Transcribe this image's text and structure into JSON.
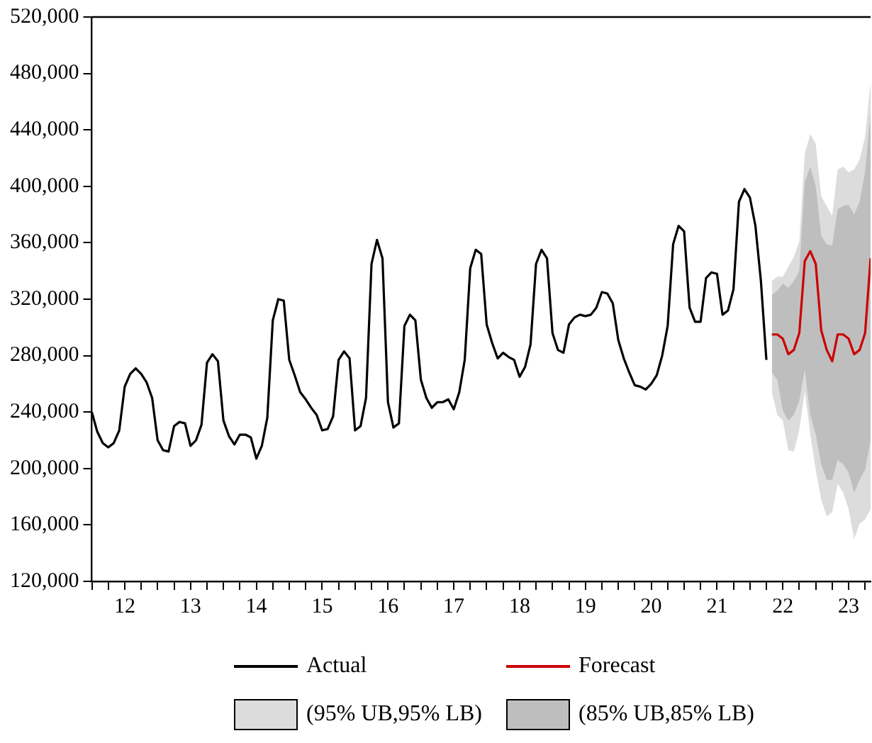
{
  "chart_data": {
    "type": "line",
    "xlim": [
      "2012-01",
      "2023-11"
    ],
    "xticks": [
      {
        "value": "2012-01",
        "label": null
      },
      {
        "value": "2012-04",
        "label": null
      },
      {
        "value": "2012-07",
        "label": "12"
      },
      {
        "value": "2012-10",
        "label": null
      },
      {
        "value": "2013-01",
        "label": null
      },
      {
        "value": "2013-04",
        "label": null
      },
      {
        "value": "2013-07",
        "label": "13"
      },
      {
        "value": "2013-10",
        "label": null
      },
      {
        "value": "2014-01",
        "label": null
      },
      {
        "value": "2014-04",
        "label": null
      },
      {
        "value": "2014-07",
        "label": "14"
      },
      {
        "value": "2014-10",
        "label": null
      },
      {
        "value": "2015-01",
        "label": null
      },
      {
        "value": "2015-04",
        "label": null
      },
      {
        "value": "2015-07",
        "label": "15"
      },
      {
        "value": "2015-10",
        "label": null
      },
      {
        "value": "2016-01",
        "label": null
      },
      {
        "value": "2016-04",
        "label": null
      },
      {
        "value": "2016-07",
        "label": "16"
      },
      {
        "value": "2016-10",
        "label": null
      },
      {
        "value": "2017-01",
        "label": null
      },
      {
        "value": "2017-04",
        "label": null
      },
      {
        "value": "2017-07",
        "label": "17"
      },
      {
        "value": "2017-10",
        "label": null
      },
      {
        "value": "2018-01",
        "label": null
      },
      {
        "value": "2018-04",
        "label": null
      },
      {
        "value": "2018-07",
        "label": "18"
      },
      {
        "value": "2018-10",
        "label": null
      },
      {
        "value": "2019-01",
        "label": null
      },
      {
        "value": "2019-04",
        "label": null
      },
      {
        "value": "2019-07",
        "label": "19"
      },
      {
        "value": "2019-10",
        "label": null
      },
      {
        "value": "2020-01",
        "label": null
      },
      {
        "value": "2020-04",
        "label": null
      },
      {
        "value": "2020-07",
        "label": "20"
      },
      {
        "value": "2020-10",
        "label": null
      },
      {
        "value": "2021-01",
        "label": null
      },
      {
        "value": "2021-04",
        "label": null
      },
      {
        "value": "2021-07",
        "label": "21"
      },
      {
        "value": "2021-10",
        "label": null
      },
      {
        "value": "2022-01",
        "label": null
      },
      {
        "value": "2022-04",
        "label": null
      },
      {
        "value": "2022-07",
        "label": "22"
      },
      {
        "value": "2022-10",
        "label": null
      },
      {
        "value": "2023-01",
        "label": null
      },
      {
        "value": "2023-04",
        "label": null
      },
      {
        "value": "2023-07",
        "label": "23"
      },
      {
        "value": "2023-10",
        "label": null
      }
    ],
    "ylim": [
      120000,
      520000
    ],
    "yticks": [
      {
        "value": 120000,
        "label": "120,000"
      },
      {
        "value": 160000,
        "label": "160,000"
      },
      {
        "value": 200000,
        "label": "200,000"
      },
      {
        "value": 240000,
        "label": "240,000"
      },
      {
        "value": 280000,
        "label": "280,000"
      },
      {
        "value": 320000,
        "label": "320,000"
      },
      {
        "value": 360000,
        "label": "360,000"
      },
      {
        "value": 400000,
        "label": "400,000"
      },
      {
        "value": 440000,
        "label": "440,000"
      },
      {
        "value": 480000,
        "label": "480,000"
      },
      {
        "value": 520000,
        "label": "520,000"
      }
    ],
    "legend": "bottom",
    "series": [
      {
        "name": "(95% UB,95% LB)",
        "type": "area",
        "values": [
          null,
          null,
          null,
          null,
          null,
          null,
          null,
          null,
          null,
          null,
          null,
          null,
          null,
          null,
          null,
          null,
          null,
          null,
          null
        ],
        "color": "#dcdcdc",
        "x": [
          "2022-05",
          "2022-06",
          "2022-07",
          "2022-08",
          "2022-09",
          "2022-10",
          "2022-11",
          "2022-12",
          "2023-01",
          "2023-02",
          "2023-03",
          "2023-04",
          "2023-05",
          "2023-06",
          "2023-07",
          "2023-08",
          "2023-09",
          "2023-10",
          "2023-11"
        ],
        "lower": [
          254000,
          238000,
          234000,
          213000,
          212000,
          227000,
          255000,
          224000,
          199000,
          178000,
          166000,
          169000,
          189000,
          183000,
          171000,
          150000,
          161000,
          164000,
          171000
        ],
        "upper": [
          333000,
          336000,
          336000,
          343000,
          350000,
          361000,
          423000,
          437000,
          430000,
          393000,
          386000,
          379000,
          412000,
          414000,
          410000,
          412000,
          419000,
          435000,
          474000
        ]
      },
      {
        "name": "(85% UB,85% LB)",
        "type": "area",
        "values": [
          null,
          null,
          null,
          null,
          null,
          null,
          null,
          null,
          null,
          null,
          null,
          null,
          null,
          null,
          null,
          null,
          null,
          null,
          null
        ],
        "color": "#bebebe",
        "x": [
          "2022-05",
          "2022-06",
          "2022-07",
          "2022-08",
          "2022-09",
          "2022-10",
          "2022-11",
          "2022-12",
          "2023-01",
          "2023-02",
          "2023-03",
          "2023-04",
          "2023-05",
          "2023-06",
          "2023-07",
          "2023-08",
          "2023-09",
          "2023-10",
          "2023-11"
        ],
        "lower": [
          268000,
          263000,
          241000,
          234000,
          238000,
          248000,
          270000,
          238000,
          224000,
          203000,
          192000,
          192000,
          206000,
          203000,
          197000,
          183000,
          192000,
          199000,
          220000
        ],
        "upper": [
          323000,
          326000,
          331000,
          328000,
          333000,
          340000,
          403000,
          414000,
          400000,
          365000,
          359000,
          358000,
          384000,
          386000,
          387000,
          380000,
          389000,
          410000,
          452000
        ]
      },
      {
        "name": "Actual",
        "type": "line",
        "color": "#000000",
        "x": [
          "2012-01",
          "2012-02",
          "2012-03",
          "2012-04",
          "2012-05",
          "2012-06",
          "2012-07",
          "2012-08",
          "2012-09",
          "2012-10",
          "2012-11",
          "2012-12",
          "2013-01",
          "2013-02",
          "2013-03",
          "2013-04",
          "2013-05",
          "2013-06",
          "2013-07",
          "2013-08",
          "2013-09",
          "2013-10",
          "2013-11",
          "2013-12",
          "2014-01",
          "2014-02",
          "2014-03",
          "2014-04",
          "2014-05",
          "2014-06",
          "2014-07",
          "2014-08",
          "2014-09",
          "2014-10",
          "2014-11",
          "2014-12",
          "2015-01",
          "2015-02",
          "2015-03",
          "2015-04",
          "2015-05",
          "2015-06",
          "2015-07",
          "2015-08",
          "2015-09",
          "2015-10",
          "2015-11",
          "2015-12",
          "2016-01",
          "2016-02",
          "2016-03",
          "2016-04",
          "2016-05",
          "2016-06",
          "2016-07",
          "2016-08",
          "2016-09",
          "2016-10",
          "2016-11",
          "2016-12",
          "2017-01",
          "2017-02",
          "2017-03",
          "2017-04",
          "2017-05",
          "2017-06",
          "2017-07",
          "2017-08",
          "2017-09",
          "2017-10",
          "2017-11",
          "2017-12",
          "2018-01",
          "2018-02",
          "2018-03",
          "2018-04",
          "2018-05",
          "2018-06",
          "2018-07",
          "2018-08",
          "2018-09",
          "2018-10",
          "2018-11",
          "2018-12",
          "2019-01",
          "2019-02",
          "2019-03",
          "2019-04",
          "2019-05",
          "2019-06",
          "2019-07",
          "2019-08",
          "2019-09",
          "2019-10",
          "2019-11",
          "2019-12",
          "2020-01",
          "2020-02",
          "2020-03",
          "2020-04",
          "2020-05",
          "2020-06",
          "2020-07",
          "2020-08",
          "2020-09",
          "2020-10",
          "2020-11",
          "2020-12",
          "2021-01",
          "2021-02",
          "2021-03",
          "2021-04",
          "2021-05",
          "2021-06",
          "2021-07",
          "2021-08",
          "2021-09",
          "2021-10",
          "2021-11",
          "2021-12",
          "2022-01",
          "2022-02",
          "2022-03",
          "2022-04"
        ],
        "values": [
          240000,
          226000,
          218000,
          215000,
          218000,
          227000,
          258000,
          267000,
          271000,
          267000,
          261000,
          250000,
          220000,
          213000,
          212000,
          230000,
          233000,
          232000,
          216000,
          220000,
          231000,
          275000,
          281000,
          276000,
          234000,
          223000,
          217000,
          224000,
          224000,
          222000,
          207000,
          216000,
          236000,
          305000,
          320000,
          319000,
          277000,
          266000,
          254000,
          249000,
          243000,
          238000,
          227000,
          228000,
          237000,
          277000,
          283000,
          278000,
          227000,
          230000,
          250000,
          345000,
          362000,
          349000,
          247000,
          229000,
          232000,
          301000,
          309000,
          305000,
          263000,
          250000,
          243000,
          247000,
          247000,
          249000,
          242000,
          254000,
          277000,
          342000,
          355000,
          352000,
          302000,
          289000,
          278000,
          282000,
          279000,
          277000,
          265000,
          272000,
          288000,
          345000,
          355000,
          349000,
          296000,
          284000,
          282000,
          302000,
          307000,
          309000,
          308000,
          309000,
          314000,
          325000,
          324000,
          317000,
          291000,
          278000,
          268000,
          259000,
          258000,
          256000,
          260000,
          266000,
          280000,
          301000,
          359000,
          372000,
          368000,
          314000,
          304000,
          304000,
          335000,
          339000,
          338000,
          309000,
          312000,
          327000,
          389000,
          398000,
          392000,
          372000,
          333000,
          277000
        ]
      },
      {
        "name": "Forecast",
        "type": "line",
        "color": "#cc0000",
        "x": [
          "2022-05",
          "2022-06",
          "2022-07",
          "2022-08",
          "2022-09",
          "2022-10",
          "2022-11",
          "2022-12",
          "2023-01",
          "2023-02",
          "2023-03",
          "2023-04",
          "2023-05",
          "2023-06",
          "2023-07",
          "2023-08",
          "2023-09",
          "2023-10",
          "2023-11"
        ],
        "values": [
          295000,
          295000,
          292000,
          281000,
          284000,
          296000,
          347000,
          354000,
          345000,
          298000,
          284000,
          276000,
          295000,
          295000,
          292000,
          281000,
          284000,
          296000,
          349000
        ]
      }
    ]
  }
}
